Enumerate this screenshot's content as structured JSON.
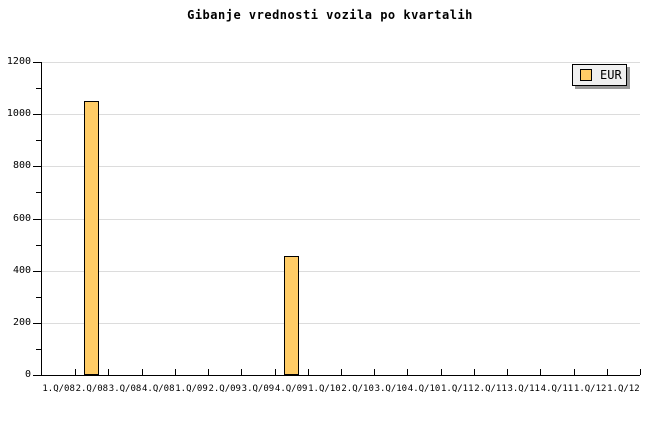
{
  "title": "Gibanje vrednosti vozila po kvartalih",
  "legend": {
    "label": "EUR"
  },
  "chart_data": {
    "type": "bar",
    "title": "Gibanje vrednosti vozila po kvartalih",
    "categories": [
      "1.Q/08",
      "2.Q/08",
      "3.Q/08",
      "4.Q/08",
      "1.Q/09",
      "2.Q/09",
      "3.Q/09",
      "4.Q/09",
      "1.Q/10",
      "2.Q/10",
      "3.Q/10",
      "4.Q/10",
      "1.Q/11",
      "2.Q/11",
      "3.Q/11",
      "4.Q/11",
      "1.Q/12",
      "1.Q/12"
    ],
    "series": [
      {
        "name": "EUR",
        "values": [
          null,
          1050,
          null,
          null,
          null,
          null,
          null,
          455,
          null,
          null,
          null,
          null,
          null,
          null,
          null,
          null,
          null,
          null
        ]
      }
    ],
    "xlabel": "",
    "ylabel": "",
    "ylim": [
      0,
      1200
    ],
    "yticks": [
      0,
      200,
      400,
      600,
      800,
      1000,
      1200
    ],
    "ytick_step": 200,
    "yminor_step": 100,
    "grid": true,
    "legend_position": "top-right",
    "colors": {
      "bar_fill": "#FFCC66",
      "bar_border": "#000000",
      "grid": "#DCDCDC",
      "axis": "#000000",
      "background": "#FFFFFF",
      "legend_bg": "#F0F0F0",
      "legend_shadow": "#999999",
      "text": "#000000"
    }
  }
}
